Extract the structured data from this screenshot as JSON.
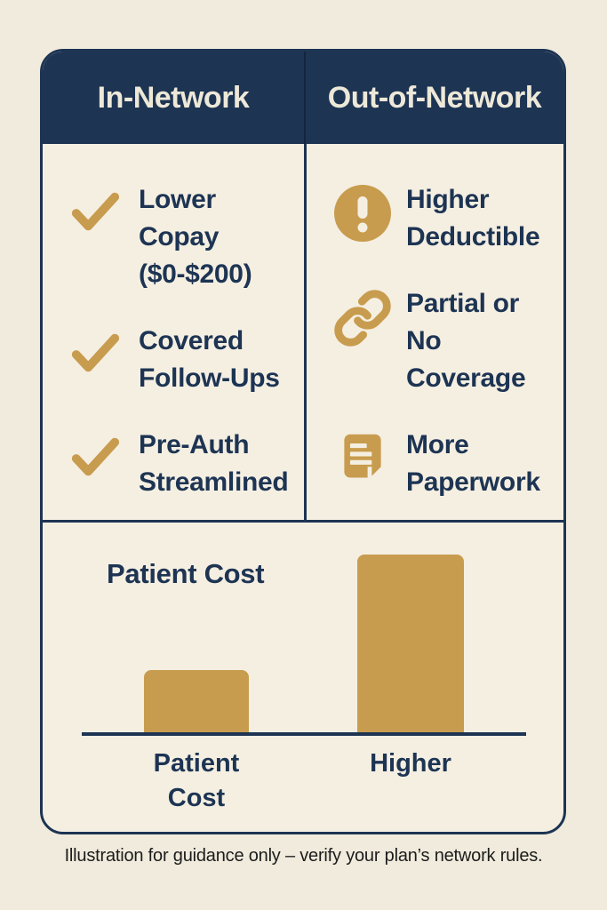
{
  "colors": {
    "background": "#f1ebdd",
    "card_bg": "#f5efe2",
    "navy": "#1d3453",
    "gold": "#c89c4e",
    "header_text": "#ede8d8",
    "footer_text": "#1c1c1c"
  },
  "header": {
    "left_title": "In-Network",
    "right_title": "Out-of-Network"
  },
  "comparison": {
    "in_network": {
      "items": [
        {
          "icon": "check-icon",
          "lines": [
            "Lower",
            "Copay",
            "($0-$200)"
          ]
        },
        {
          "icon": "check-icon",
          "lines": [
            "Covered",
            "Follow-Ups"
          ]
        },
        {
          "icon": "check-icon",
          "lines": [
            "Pre-Auth",
            "Streamlined"
          ]
        }
      ]
    },
    "out_of_network": {
      "items": [
        {
          "icon": "exclamation-icon",
          "lines": [
            "Higher",
            "Deductible"
          ]
        },
        {
          "icon": "link-icon",
          "lines": [
            "Partial or",
            "No",
            "Coverage"
          ]
        },
        {
          "icon": "document-icon",
          "lines": [
            "More",
            "Paperwork"
          ]
        }
      ]
    }
  },
  "chart": {
    "title": "Patient Cost",
    "bar_labels": [
      [
        "Patient",
        "Cost"
      ],
      [
        "Higher"
      ]
    ]
  },
  "chart_data": {
    "type": "bar",
    "title": "Patient Cost",
    "categories": [
      "Patient Cost",
      "Higher"
    ],
    "values": [
      0.35,
      1.0
    ],
    "xlabel": "",
    "ylabel": "",
    "axis": "baseline only, no numeric scale shown",
    "legend": "none",
    "bar_color": "#c89c4e"
  },
  "footer": {
    "disclaimer": "Illustration for guidance only – verify your plan’s network rules."
  }
}
